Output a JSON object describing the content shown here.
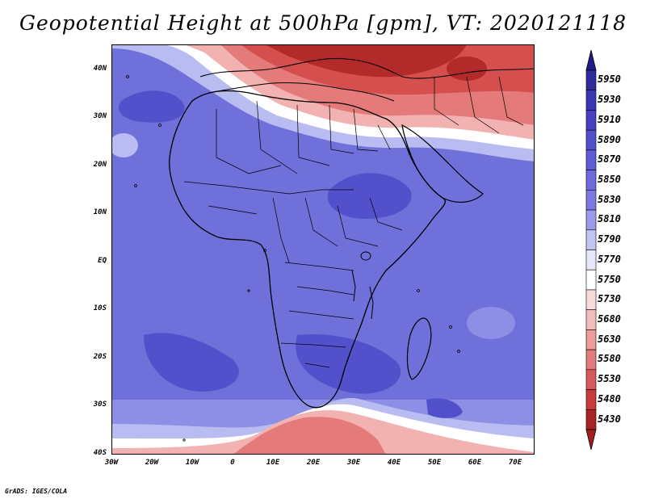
{
  "title": "Geopotential Height at 500hPa [gpm], VT: 2020121118",
  "credit": "GrADS: IGES/COLA",
  "lat_labels": [
    "40N",
    "30N",
    "20N",
    "10N",
    "EQ",
    "10S",
    "20S",
    "30S",
    "40S"
  ],
  "lon_labels": [
    "30W",
    "20W",
    "10W",
    "0",
    "10E",
    "20E",
    "30E",
    "40E",
    "50E",
    "60E",
    "70E"
  ],
  "colorbar": {
    "levels": [
      "5950",
      "5930",
      "5910",
      "5890",
      "5870",
      "5850",
      "5830",
      "5810",
      "5790",
      "5770",
      "5750",
      "5730",
      "5680",
      "5630",
      "5580",
      "5530",
      "5480",
      "5430"
    ],
    "colors": [
      "#2e2b9a",
      "#3a37b2",
      "#4541c2",
      "#524fcd",
      "#5f5dd6",
      "#6d6bdc",
      "#7b7ae2",
      "#9b9ce9",
      "#c2c4f1",
      "#e6e8fa",
      "#ffffff",
      "#f8dcdc",
      "#f2bcbc",
      "#ec9c9c",
      "#e37c7c",
      "#d95a5a",
      "#c93a3a",
      "#a82323"
    ],
    "top_color": "#1f1c88",
    "bottom_color": "#a31f1f"
  },
  "field_colors": {
    "deep_red": "#b22a2a",
    "red": "#d64f4f",
    "mid_red": "#e57a7a",
    "light_red": "#f2b2b2",
    "pale": "#fbe8e8",
    "white": "#ffffff",
    "pale_blue": "#e4e6fa",
    "light_blue": "#b9bcf0",
    "mid_blue": "#8c8fe5",
    "blue": "#7274dc",
    "blue2": "#6a6bd8",
    "deep_blue": "#5250cb",
    "deepest": "#4441c0"
  }
}
